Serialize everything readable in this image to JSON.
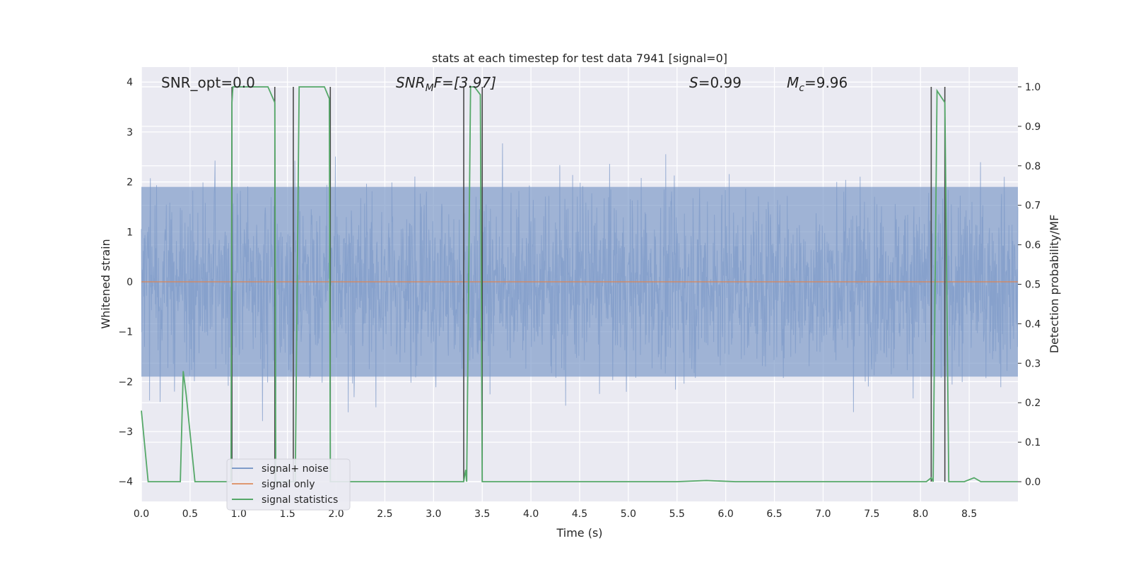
{
  "chart_data": {
    "type": "line",
    "title": "stats at each timestep for test data 7941 [signal=0]",
    "xlabel": "Time (s)",
    "ylabel": "Whitened strain",
    "y2label": "Detection probability/MF",
    "xlim": [
      0.0,
      9.0
    ],
    "ylim": [
      -4.4,
      4.3
    ],
    "y2lim": [
      -0.05,
      1.05
    ],
    "grid": true,
    "legend_position": "lower-left",
    "x_ticks": [
      "0.0",
      "0.5",
      "1.0",
      "1.5",
      "2.0",
      "2.5",
      "3.0",
      "3.5",
      "4.0",
      "4.5",
      "5.0",
      "5.5",
      "6.0",
      "6.5",
      "7.0",
      "7.5",
      "8.0",
      "8.5"
    ],
    "y_ticks": [
      "4",
      "3",
      "2",
      "1",
      "0",
      "−1",
      "−2",
      "−3",
      "−4"
    ],
    "y2_ticks": [
      "1.0",
      "0.9",
      "0.8",
      "0.7",
      "0.6",
      "0.5",
      "0.4",
      "0.3",
      "0.2",
      "0.1",
      "0.0"
    ],
    "annotations": {
      "snr_opt": "SNR_opt=0.0",
      "snr_mf_base": "SNR",
      "snr_mf_sub": "M",
      "snr_mf_tail": "F=[3.97]",
      "s_label": "S",
      "s_value": "=0.99",
      "mc_base": "M",
      "mc_sub": "c",
      "mc_value": "=9.96"
    },
    "colors": {
      "noise": "#7f9bc9",
      "signal_only": "#dd8452",
      "statistics": "#55a868",
      "vline": "#4a4a4a",
      "background": "#eaeaf2"
    },
    "series": [
      {
        "name": "signal+ noise",
        "note_values": "dense whitened strain noise, roughly within ±2 with peaks up to ±4",
        "band": [
          -1.9,
          1.9
        ]
      },
      {
        "name": "signal only",
        "values_y": 0.0
      },
      {
        "name": "signal statistics",
        "axis": "right",
        "x": [
          0.0,
          0.07,
          0.15,
          0.35,
          0.4,
          0.43,
          0.46,
          0.55,
          0.6,
          0.92,
          0.93,
          0.94,
          1.0,
          1.3,
          1.37,
          1.38,
          1.43,
          1.55,
          1.58,
          1.62,
          1.88,
          1.93,
          1.94,
          2.0,
          2.1,
          3.25,
          3.31,
          3.33,
          3.34,
          3.38,
          3.42,
          3.48,
          3.5,
          3.55,
          3.62,
          5.5,
          5.8,
          6.1,
          8.06,
          8.11,
          8.13,
          8.17,
          8.25,
          8.29,
          8.33,
          8.4,
          8.45,
          8.55,
          8.62,
          9.0
        ],
        "values": [
          0.18,
          0.0,
          0.0,
          0.0,
          0.0,
          0.28,
          0.22,
          0.0,
          0.0,
          0.0,
          0.96,
          1.0,
          1.0,
          1.0,
          0.96,
          0.0,
          0.0,
          0.0,
          0.0,
          1.0,
          1.0,
          0.97,
          0.0,
          0.0,
          0.0,
          0.0,
          0.0,
          0.03,
          0.0,
          1.0,
          1.0,
          0.98,
          0.0,
          0.0,
          0.0,
          0.0,
          0.003,
          0.0,
          0.0,
          0.01,
          0.0,
          0.99,
          0.96,
          0.0,
          0.0,
          0.0,
          0.0,
          0.01,
          0.0,
          0.0
        ]
      }
    ],
    "vlines_x": [
      0.93,
      1.37,
      1.56,
      1.94,
      3.31,
      3.5,
      8.11,
      8.25
    ]
  }
}
